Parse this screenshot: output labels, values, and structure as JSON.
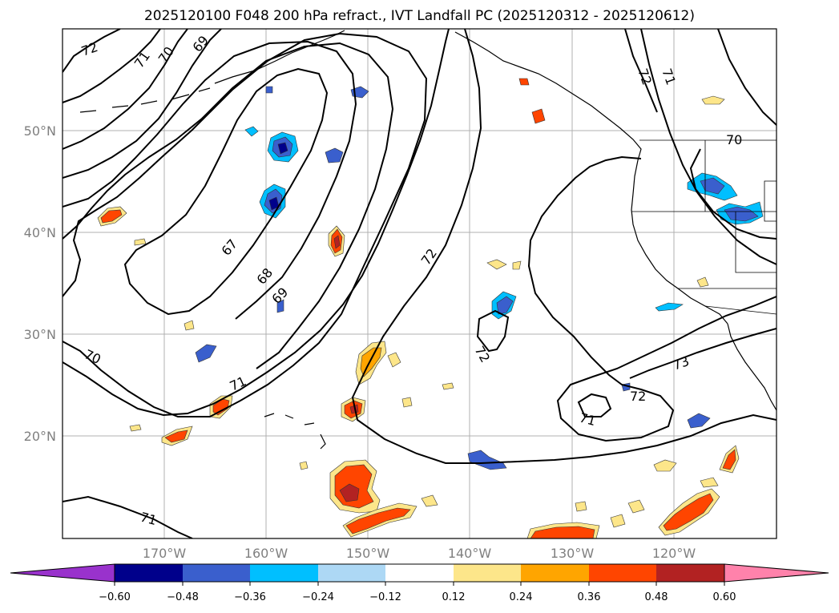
{
  "title": "2025120100 F048 200 hPa refract., IVT Landfall PC (2025120312 - 2025120612)",
  "lat_labels": [
    "50°N",
    "40°N",
    "30°N",
    "20°N"
  ],
  "lon_labels": [
    "170°W",
    "160°W",
    "150°W",
    "140°W",
    "130°W",
    "120°W"
  ],
  "contour_labels": [
    "72",
    "71",
    "70",
    "69",
    "67",
    "68",
    "69",
    "70",
    "71",
    "71",
    "72",
    "72",
    "73",
    "72",
    "71",
    "72",
    "71",
    "70"
  ],
  "colorbar": {
    "ticks": [
      "−0.60",
      "−0.48",
      "−0.36",
      "−0.24",
      "−0.12",
      "0.12",
      "0.24",
      "0.36",
      "0.48",
      "0.60"
    ],
    "colors": [
      "#9932cc",
      "#00008b",
      "#3a5fcd",
      "#00bfff",
      "#add8f5",
      "#ffffff",
      "#fde68a",
      "#ffa500",
      "#ff4500",
      "#b22222",
      "#ff82ab"
    ]
  },
  "fill_colors": {
    "neg_outer": "#00bfff",
    "neg_mid": "#3a5fcd",
    "neg_core": "#00008b",
    "pos_outer": "#fde68a",
    "pos_mid": "#ffa500",
    "pos_in": "#ff4500",
    "pos_core": "#b22222"
  }
}
